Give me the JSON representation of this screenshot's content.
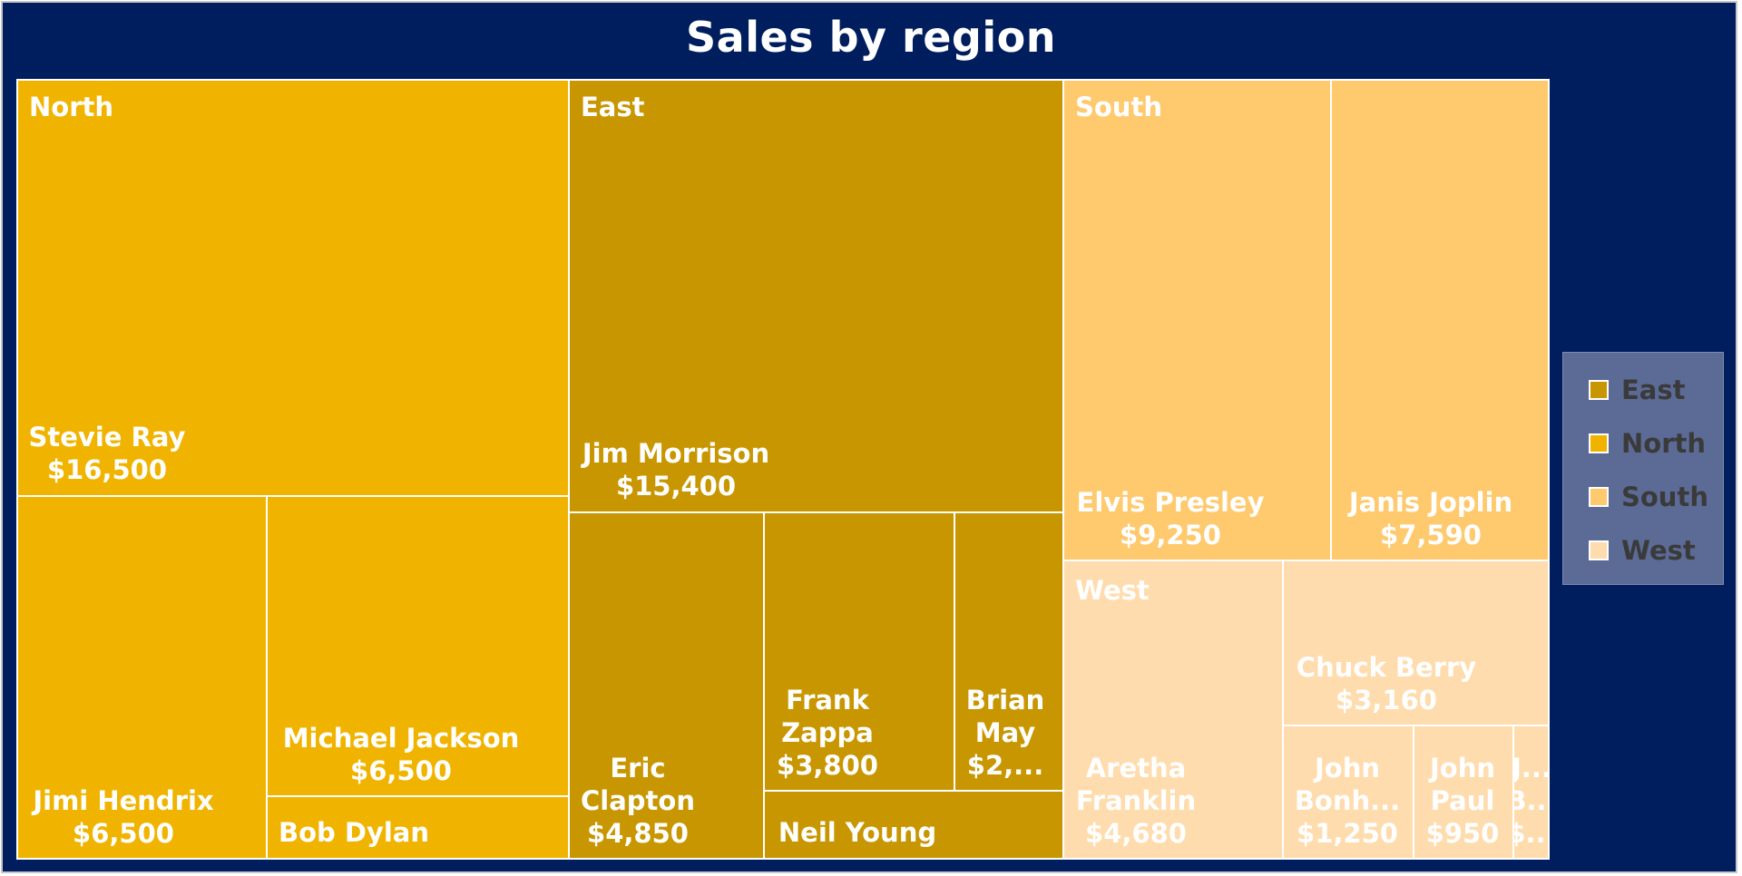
{
  "chart_data": {
    "type": "treemap",
    "title": "Sales by region",
    "legend_position": "right",
    "regions": [
      {
        "name": "North",
        "color": "#f0b400",
        "items": [
          {
            "name": "Stevie Ray",
            "value": 16500,
            "label": [
              "Stevie Ray",
              "$16,500"
            ]
          },
          {
            "name": "Jimi Hendrix",
            "value": 6500,
            "label": [
              "Jimi Hendrix",
              "$6,500"
            ]
          },
          {
            "name": "Michael Jackson",
            "value": 6500,
            "label": [
              "Michael Jackson",
              "$6,500"
            ]
          },
          {
            "name": "Bob Dylan",
            "label": [
              "Bob Dylan"
            ]
          }
        ]
      },
      {
        "name": "East",
        "color": "#c89600",
        "items": [
          {
            "name": "Jim Morrison",
            "value": 15400,
            "label": [
              "Jim Morrison",
              "$15,400"
            ]
          },
          {
            "name": "Eric Clapton",
            "value": 4850,
            "label": [
              "Eric",
              "Clapton",
              "$4,850"
            ]
          },
          {
            "name": "Frank Zappa",
            "value": 3800,
            "label": [
              "Frank",
              "Zappa",
              "$3,800"
            ]
          },
          {
            "name": "Brian May",
            "label": [
              "Brian",
              "May",
              "$2,..."
            ]
          },
          {
            "name": "Neil Young",
            "label": [
              "Neil Young"
            ]
          }
        ]
      },
      {
        "name": "South",
        "color": "#ffc96e",
        "items": [
          {
            "name": "Elvis Presley",
            "value": 9250,
            "label": [
              "Elvis Presley",
              "$9,250"
            ]
          },
          {
            "name": "Janis Joplin",
            "value": 7590,
            "label": [
              "Janis Joplin",
              "$7,590"
            ]
          }
        ]
      },
      {
        "name": "West",
        "color": "#ffdcae",
        "items": [
          {
            "name": "Aretha Franklin",
            "value": 4680,
            "label": [
              "Aretha",
              "Franklin",
              "$4,680"
            ]
          },
          {
            "name": "Chuck Berry",
            "value": 3160,
            "label": [
              "Chuck Berry",
              "$3,160"
            ]
          },
          {
            "name": "John Bonham",
            "value": 1250,
            "label": [
              "John",
              "Bonh...",
              "$1,250"
            ]
          },
          {
            "name": "John Paul",
            "value": 950,
            "label": [
              "John",
              "Paul",
              "$950"
            ]
          },
          {
            "name": "J... B...",
            "label": [
              "J...",
              "B...",
              "$..."
            ]
          }
        ]
      }
    ],
    "legend": [
      {
        "name": "East",
        "color": "#c89600"
      },
      {
        "name": "North",
        "color": "#f0b400"
      },
      {
        "name": "South",
        "color": "#ffc96e"
      },
      {
        "name": "West",
        "color": "#ffdcae"
      }
    ]
  }
}
